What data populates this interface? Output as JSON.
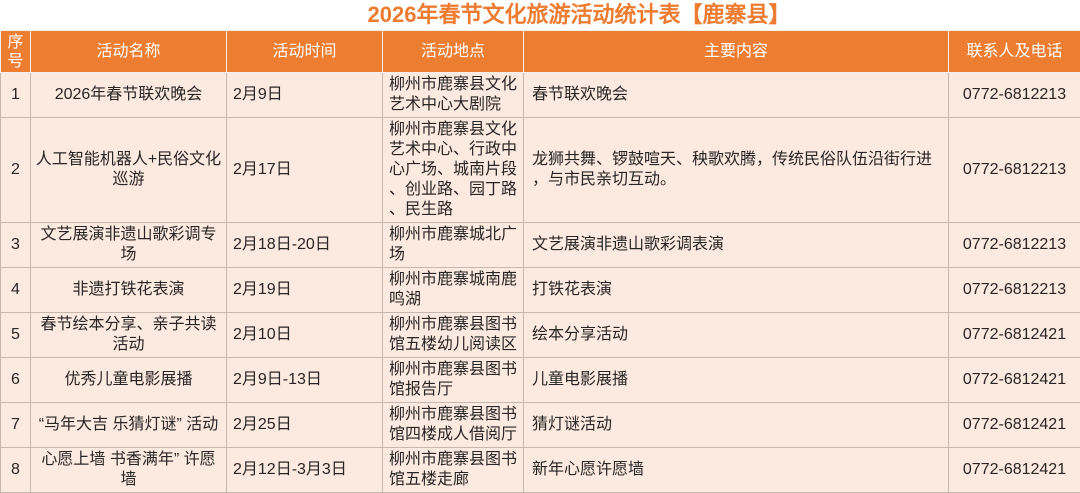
{
  "title": "2026年春节文化旅游活动统计表【鹿寨县】",
  "table": {
    "headers": [
      "序号",
      "活动名称",
      "活动时间",
      "活动地点",
      "主要内容",
      "联系人及电话"
    ],
    "rows": [
      {
        "no": "1",
        "name": "2026年春节联欢晚会",
        "time": "2月9日",
        "place": "柳州市鹿寨县文化艺术中心大剧院",
        "content": "春节联欢晚会",
        "phone": "0772-6812213"
      },
      {
        "no": "2",
        "name": "人工智能机器人+民俗文化巡游",
        "time": "2月17日",
        "place": "柳州市鹿寨县文化艺术中心、行政中心广场、城南片段、创业路、园丁路、民生路",
        "content": "龙狮共舞、锣鼓喧天、秧歌欢腾，传统民俗队伍沿街行进，与市民亲切互动。",
        "phone": "0772-6812213"
      },
      {
        "no": "3",
        "name": "文艺展演非遗山歌彩调专场",
        "time": "2月18日-20日",
        "place": "柳州市鹿寨城北广场",
        "content": "文艺展演非遗山歌彩调表演",
        "phone": "0772-6812213"
      },
      {
        "no": "4",
        "name": "非遗打铁花表演",
        "time": "2月19日",
        "place": "柳州市鹿寨城南鹿鸣湖",
        "content": "打铁花表演",
        "phone": "0772-6812213"
      },
      {
        "no": "5",
        "name": "春节绘本分享、亲子共读活动",
        "time": "2月10日",
        "place": "柳州市鹿寨县图书馆五楼幼儿阅读区",
        "content": "绘本分享活动",
        "phone": "0772-6812421"
      },
      {
        "no": "6",
        "name": "优秀儿童电影展播",
        "time": "2月9日-13日",
        "place": "柳州市鹿寨县图书馆报告厅",
        "content": "儿童电影展播",
        "phone": "0772-6812421"
      },
      {
        "no": "7",
        "name": "“马年大吉 乐猜灯谜” 活动",
        "time": "2月25日",
        "place": "柳州市鹿寨县图书馆四楼成人借阅厅",
        "content": "猜灯谜活动",
        "phone": "0772-6812421"
      },
      {
        "no": "8",
        "name": "心愿上墙 书香满年” 许愿墙",
        "time": "2月12日-3月3日",
        "place": "柳州市鹿寨县图书馆五楼走廊",
        "content": "新年心愿许愿墙",
        "phone": "0772-6812421"
      }
    ]
  },
  "colors": {
    "header_bg": "#ED7D31",
    "header_text": "#FFFFFF",
    "row_bg": "#FCE9DF",
    "title_color": "#ED7C31",
    "grid_color": "#C6B8AE"
  }
}
